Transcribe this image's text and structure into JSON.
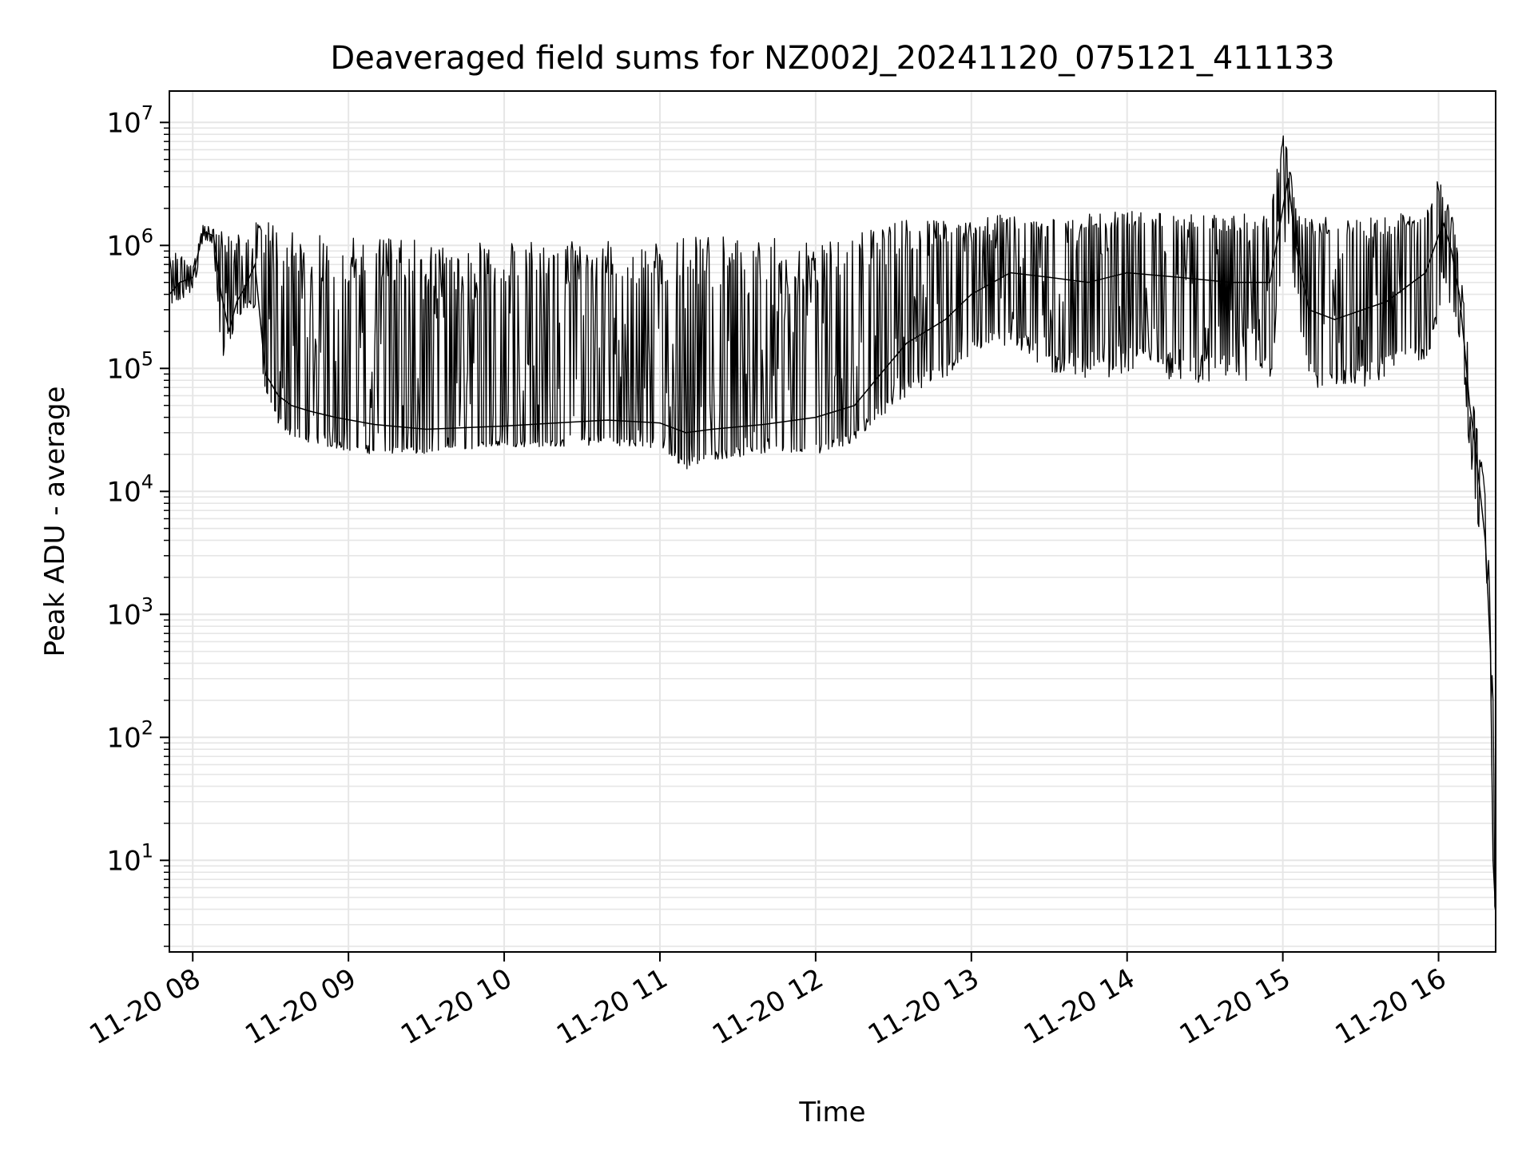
{
  "chart_data": {
    "type": "line",
    "title": "Deaveraged field sums for NZ002J_20241120_075121_411133",
    "xlabel": "Time",
    "ylabel": "Peak ADU - average",
    "y_scale": "log",
    "xlim": [
      "2024-11-20 07:51",
      "2024-11-20 16:22"
    ],
    "ylim": [
      1.8,
      18000000
    ],
    "x_ticks": [
      "11-20 08",
      "11-20 09",
      "11-20 10",
      "11-20 11",
      "11-20 12",
      "11-20 13",
      "11-20 14",
      "11-20 15",
      "11-20 16"
    ],
    "y_ticks": [
      {
        "base": "10",
        "exp": "1",
        "value": 10
      },
      {
        "base": "10",
        "exp": "2",
        "value": 100
      },
      {
        "base": "10",
        "exp": "3",
        "value": 1000
      },
      {
        "base": "10",
        "exp": "4",
        "value": 10000
      },
      {
        "base": "10",
        "exp": "5",
        "value": 100000
      },
      {
        "base": "10",
        "exp": "6",
        "value": 1000000
      },
      {
        "base": "10",
        "exp": "7",
        "value": 10000000
      }
    ],
    "grid": true,
    "line_color": "#000000",
    "grid_color": "#e6e6e6",
    "series": [
      {
        "x": [
          "2024-11-20 07:51",
          "2024-11-20 07:55",
          "2024-11-20 08:00",
          "2024-11-20 08:04",
          "2024-11-20 08:08",
          "2024-11-20 08:11",
          "2024-11-20 08:14",
          "2024-11-20 08:17",
          "2024-11-20 08:20",
          "2024-11-20 08:24",
          "2024-11-20 08:28",
          "2024-11-20 08:33",
          "2024-11-20 08:38",
          "2024-11-20 08:45",
          "2024-11-20 08:55",
          "2024-11-20 09:10",
          "2024-11-20 09:30",
          "2024-11-20 09:45",
          "2024-11-20 10:00",
          "2024-11-20 10:20",
          "2024-11-20 10:40",
          "2024-11-20 11:00",
          "2024-11-20 11:10",
          "2024-11-20 11:20",
          "2024-11-20 11:40",
          "2024-11-20 12:00",
          "2024-11-20 12:15",
          "2024-11-20 12:25",
          "2024-11-20 12:35",
          "2024-11-20 12:50",
          "2024-11-20 13:00",
          "2024-11-20 13:15",
          "2024-11-20 13:30",
          "2024-11-20 13:45",
          "2024-11-20 14:00",
          "2024-11-20 14:20",
          "2024-11-20 14:40",
          "2024-11-20 14:55",
          "2024-11-20 15:00",
          "2024-11-20 15:02",
          "2024-11-20 15:05",
          "2024-11-20 15:10",
          "2024-11-20 15:20",
          "2024-11-20 15:40",
          "2024-11-20 15:55",
          "2024-11-20 16:00",
          "2024-11-20 16:02",
          "2024-11-20 16:05",
          "2024-11-20 16:08",
          "2024-11-20 16:10",
          "2024-11-20 16:12",
          "2024-11-20 16:14",
          "2024-11-20 16:16",
          "2024-11-20 16:18",
          "2024-11-20 16:19",
          "2024-11-20 16:20",
          "2024-11-20 16:21",
          "2024-11-20 16:22"
        ],
        "y": [
          400000,
          500000,
          550000,
          1300000,
          1200000,
          400000,
          200000,
          350000,
          450000,
          700000,
          90000,
          60000,
          50000,
          45000,
          40000,
          35000,
          32000,
          33000,
          34000,
          36000,
          38000,
          36000,
          30000,
          32000,
          35000,
          40000,
          50000,
          90000,
          160000,
          250000,
          400000,
          600000,
          550000,
          500000,
          600000,
          550000,
          500000,
          500000,
          2000000,
          3500000,
          1000000,
          300000,
          250000,
          350000,
          600000,
          1200000,
          1500000,
          900000,
          400000,
          150000,
          50000,
          25000,
          10000,
          4000,
          1500,
          500,
          10,
          3.8
        ],
        "lo": [
          300000,
          350000,
          400000,
          1100000,
          1000000,
          120000,
          150000,
          250000,
          300000,
          300000,
          60000,
          35000,
          28000,
          25000,
          22000,
          20000,
          20000,
          22000,
          23000,
          23000,
          24000,
          22000,
          15000,
          18000,
          20000,
          20000,
          25000,
          40000,
          60000,
          80000,
          130000,
          150000,
          90000,
          80000,
          90000,
          80000,
          70000,
          70000,
          500000,
          1500000,
          300000,
          70000,
          60000,
          80000,
          120000,
          200000,
          500000,
          250000,
          150000,
          60000,
          20000,
          9000,
          3000,
          1500,
          600,
          400,
          5,
          3.8
        ],
        "hi": [
          900000,
          900000,
          650000,
          1500000,
          1400000,
          1300000,
          1300000,
          1200000,
          1300000,
          1700000,
          1600000,
          1500000,
          1400000,
          1300000,
          1200000,
          1150000,
          1100000,
          1100000,
          1050000,
          1150000,
          1150000,
          1100000,
          1150000,
          1200000,
          1150000,
          1100000,
          1200000,
          1500000,
          1600000,
          1600000,
          1700000,
          1800000,
          1700000,
          1800000,
          1900000,
          1800000,
          1800000,
          1800000,
          8500000,
          6000000,
          2000000,
          1700000,
          1700000,
          1800000,
          1900000,
          3500000,
          2800000,
          2000000,
          800000,
          300000,
          100000,
          45000,
          20000,
          12000,
          5000,
          1200,
          200,
          3.8
        ]
      }
    ]
  }
}
